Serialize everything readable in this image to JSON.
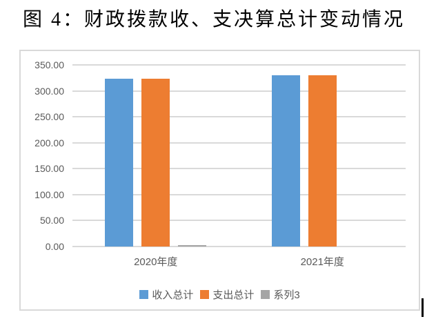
{
  "page_title": "图 4：财政拨款收、支决算总计变动情况",
  "colors": {
    "series_income_blue": "#5B9BD5",
    "series_expense_orange": "#ED7D31",
    "series_3_gray": "#A5A5A5",
    "gridline": "#D9D9D9",
    "chart_border": "#D9D9D9",
    "axis_text": "#595959",
    "title_text": "#000000"
  },
  "chart_data": {
    "type": "bar",
    "title": "图 4：财政拨款收、支决算总计变动情况",
    "categories": [
      "2020年度",
      "2021年度"
    ],
    "series": [
      {
        "name": "收入总计",
        "color": "#5B9BD5",
        "values": [
          324,
          330
        ]
      },
      {
        "name": "支出总计",
        "color": "#ED7D31",
        "values": [
          324,
          330
        ]
      },
      {
        "name": "系列3",
        "color": "#A5A5A5",
        "values": [
          2,
          0
        ]
      }
    ],
    "xlabel": "",
    "ylabel": "",
    "ylim": [
      0,
      350
    ],
    "ytick_step": 50,
    "ytick_labels": [
      "0.00",
      "50.00",
      "100.00",
      "150.00",
      "200.00",
      "250.00",
      "300.00",
      "350.00"
    ],
    "grid": true,
    "legend_position": "bottom"
  }
}
